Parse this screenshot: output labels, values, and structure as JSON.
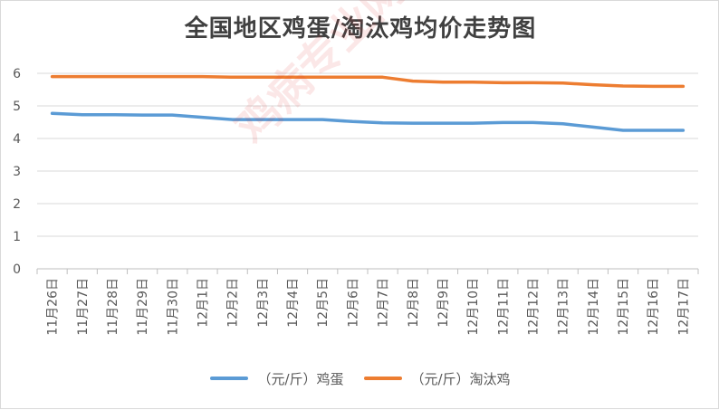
{
  "chart_data": {
    "type": "line",
    "title": "全国地区鸡蛋/淘汰鸡均价走势图",
    "categories": [
      "11月26日",
      "11月27日",
      "11月28日",
      "11月29日",
      "11月30日",
      "12月1日",
      "12月2日",
      "12月3日",
      "12月4日",
      "12月5日",
      "12月6日",
      "12月7日",
      "12月8日",
      "12月9日",
      "12月10日",
      "12月11日",
      "12月12日",
      "12月13日",
      "12月14日",
      "12月15日",
      "12月16日",
      "12月17日"
    ],
    "series": [
      {
        "name": "（元/斤）鸡蛋",
        "color": "#5b9bd5",
        "values": [
          4.77,
          4.73,
          4.73,
          4.72,
          4.72,
          4.65,
          4.58,
          4.58,
          4.58,
          4.58,
          4.52,
          4.48,
          4.47,
          4.47,
          4.47,
          4.49,
          4.49,
          4.45,
          4.35,
          4.25,
          4.25,
          4.25
        ]
      },
      {
        "name": "（元/斤）淘汰鸡",
        "color": "#ed7d31",
        "values": [
          5.9,
          5.9,
          5.9,
          5.9,
          5.9,
          5.9,
          5.88,
          5.88,
          5.88,
          5.88,
          5.88,
          5.88,
          5.76,
          5.73,
          5.73,
          5.71,
          5.71,
          5.7,
          5.65,
          5.61,
          5.6,
          5.6
        ]
      }
    ],
    "ylim": [
      0,
      6
    ],
    "yticks": [
      "0",
      "1",
      "2",
      "3",
      "4",
      "5",
      "6"
    ],
    "xlabel": "",
    "ylabel": "",
    "grid": true,
    "legend_position": "bottom"
  },
  "watermark": "鸡病专业网 www.jbzyw.com"
}
